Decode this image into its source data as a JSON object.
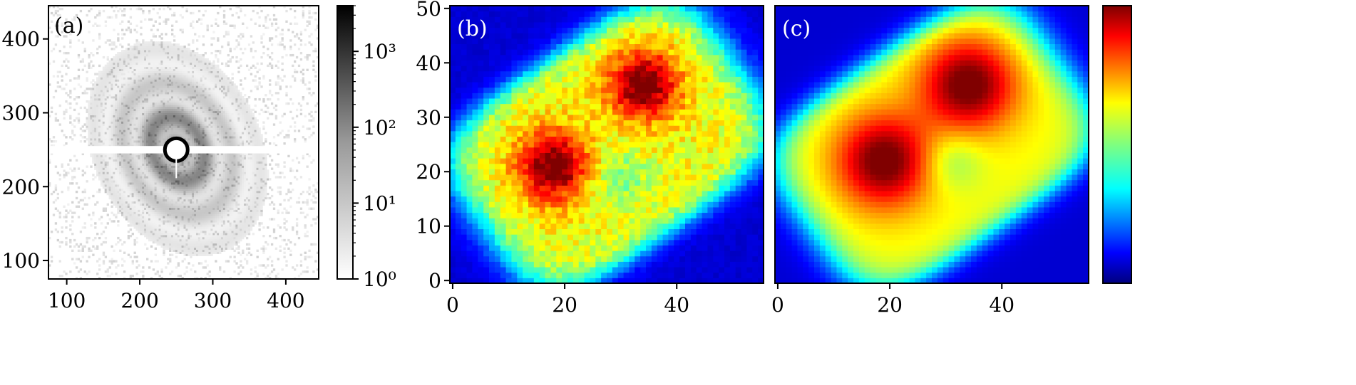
{
  "chart_data": [
    {
      "type": "heatmap",
      "panel_label": "(a)",
      "scale": "log",
      "colormap": "grayscale (white = low, black = high)",
      "xlim": [
        75,
        445
      ],
      "ylim": [
        75,
        445
      ],
      "xticks": [
        100,
        200,
        300,
        400
      ],
      "yticks": [
        100,
        200,
        300,
        400
      ],
      "colorbar": {
        "scale": "log",
        "range": [
          1,
          4000
        ],
        "ticks": [
          1,
          10,
          100,
          1000
        ],
        "tick_labels": [
          "10⁰",
          "10¹",
          "10²",
          "10³"
        ]
      },
      "features": {
        "center": [
          250,
          250
        ],
        "description": "diffraction speckle rings around a masked center; horizontal mask strip at y≈250 (x from 75 to 445); sparse noise background"
      }
    },
    {
      "type": "heatmap",
      "panel_label": "(b)",
      "colormap": "jet",
      "xlim": [
        -0.5,
        55.5
      ],
      "ylim": [
        -0.5,
        50.5
      ],
      "xticks": [
        0,
        20,
        40
      ],
      "yticks": [
        0,
        10,
        20,
        30,
        40,
        50
      ],
      "features": {
        "object_region": "hexagon-like blob spanning x≈5–51, y≈4–46",
        "high_intensity_lobes": [
          [
            18,
            21
          ],
          [
            34,
            36
          ]
        ],
        "low_intensity_region": [
          30,
          19
        ],
        "noise": "pixel-level speckle"
      }
    },
    {
      "type": "heatmap",
      "panel_label": "(c)",
      "colormap": "jet",
      "xlim": [
        -0.5,
        55.5
      ],
      "ylim": [
        -0.5,
        50.5
      ],
      "xticks": [
        0,
        20,
        40
      ],
      "features": {
        "object_region": "smooth hexagon-like blob spanning x≈6–50, y≈6–46",
        "high_intensity_lobes": [
          [
            19,
            22
          ],
          [
            34,
            36
          ]
        ],
        "low_intensity_region": [
          31,
          22
        ],
        "noise": "smooth reconstruction"
      }
    }
  ]
}
